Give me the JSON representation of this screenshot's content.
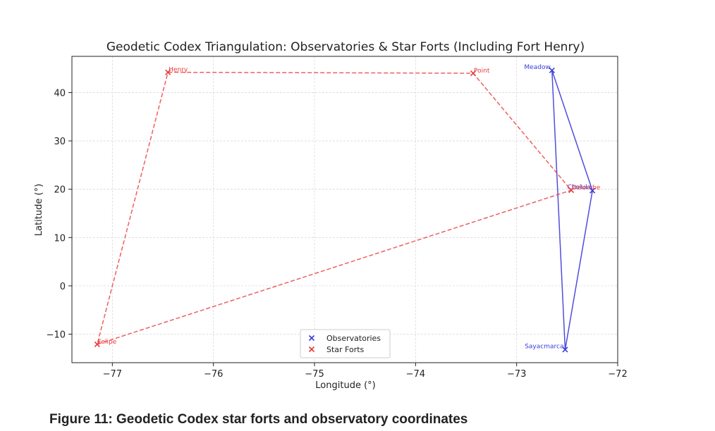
{
  "chart_data": {
    "type": "scatter",
    "title": "Geodetic Codex Triangulation: Observatories & Star Forts (Including Fort Henry)",
    "xlabel": "Longitude (°)",
    "ylabel": "Latitude (°)",
    "xlim": [
      -77.4,
      -72.0
    ],
    "ylim": [
      -15.9,
      47.5
    ],
    "xticks": [
      -77,
      -76,
      -75,
      -74,
      -73,
      -72
    ],
    "xtick_labels": [
      "−77",
      "−76",
      "−75",
      "−74",
      "−73",
      "−72"
    ],
    "yticks": [
      -10,
      0,
      10,
      20,
      30,
      40
    ],
    "ytick_labels": [
      "−10",
      "0",
      "10",
      "20",
      "30",
      "40"
    ],
    "grid": true,
    "legend": "lower-center",
    "series": [
      {
        "name": "Observatories",
        "color": "#3b3bd9",
        "marker": "x",
        "line": "solid",
        "closed": true,
        "points": [
          {
            "label": "Meadow",
            "x": -72.65,
            "y": 44.6
          },
          {
            "label": "Cholula",
            "x": -72.25,
            "y": 19.7
          },
          {
            "label": "Sayacmarca",
            "x": -72.52,
            "y": -13.2
          }
        ]
      },
      {
        "name": "Star Forts",
        "color": "#e8383b",
        "marker": "x",
        "line": "dashed",
        "closed": true,
        "points": [
          {
            "label": "Henry",
            "x": -76.45,
            "y": 44.2
          },
          {
            "label": "Point",
            "x": -73.43,
            "y": 44.0
          },
          {
            "label": "Delorche",
            "x": -72.46,
            "y": 19.8
          },
          {
            "label": "Felipe",
            "x": -77.15,
            "y": -12.1
          }
        ]
      }
    ]
  },
  "caption": "Figure 11: Geodetic Codex star forts and observatory coordinates"
}
